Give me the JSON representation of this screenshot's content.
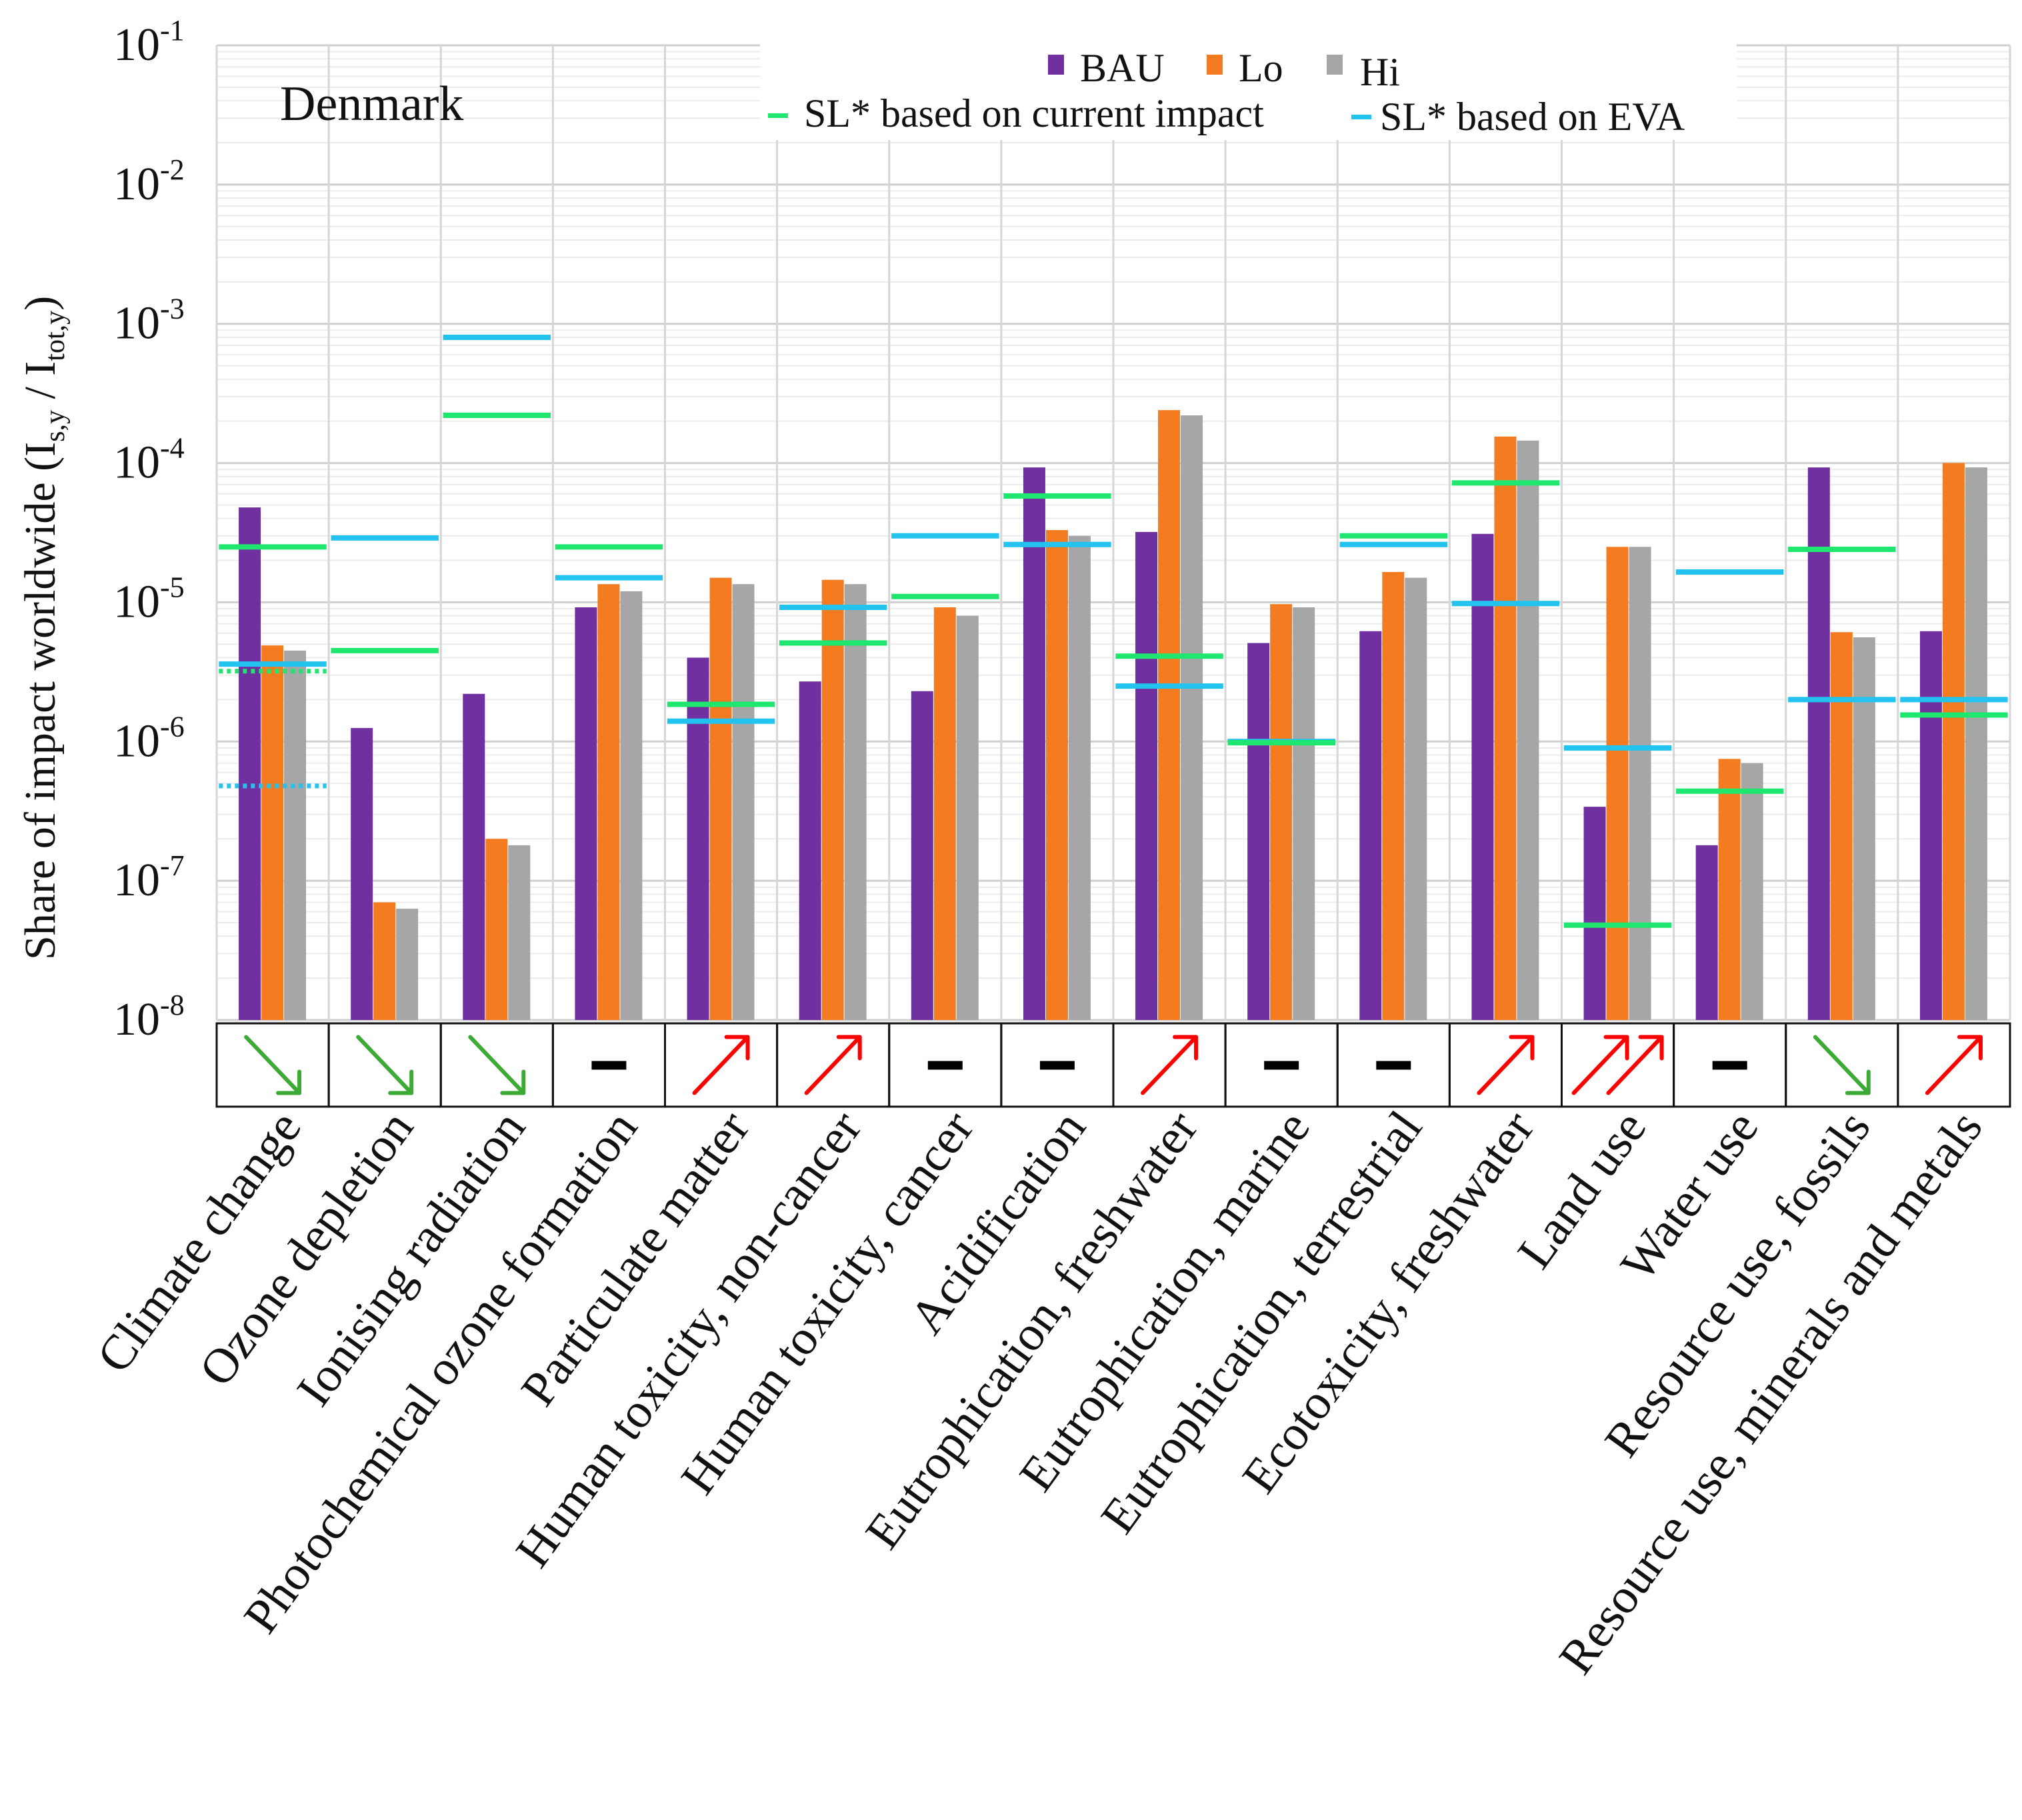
{
  "chart_data": {
    "type": "bar",
    "title": "Denmark",
    "ylabel": {
      "main": "Share of impact worldwide (I",
      "sub1": "s,y",
      "mid": " / I",
      "sub2": "tot,y",
      "end": ")"
    },
    "yscale": "log",
    "ylim": [
      1e-08,
      0.1
    ],
    "yticks": [
      {
        "base": "10",
        "exp": "-1",
        "value": 0.1
      },
      {
        "base": "10",
        "exp": "-2",
        "value": 0.01
      },
      {
        "base": "10",
        "exp": "-3",
        "value": 0.001
      },
      {
        "base": "10",
        "exp": "-4",
        "value": 0.0001
      },
      {
        "base": "10",
        "exp": "-5",
        "value": 1e-05
      },
      {
        "base": "10",
        "exp": "-6",
        "value": 1e-06
      },
      {
        "base": "10",
        "exp": "-7",
        "value": 1e-07
      },
      {
        "base": "10",
        "exp": "-8",
        "value": 1e-08
      }
    ],
    "grid": true,
    "legend_position": "top-right",
    "legend": {
      "bars": [
        {
          "name": "BAU",
          "color": "#7030A0"
        },
        {
          "name": "Lo",
          "color": "#F47B20"
        },
        {
          "name": "Hi",
          "color": "#A6A6A6"
        }
      ],
      "lines": [
        {
          "name": "SL* based on current impact",
          "color": "#1EE66E"
        },
        {
          "name": "SL* based on EVA",
          "color": "#22C3EE"
        }
      ]
    },
    "categories": [
      "Climate change",
      "Ozone depletion",
      "Ionising radiation",
      "Photochemical ozone formation",
      "Particulate matter",
      "Human toxicity, non-cancer",
      "Human toxicity, cancer",
      "Acidification",
      "Eutrophication, freshwater",
      "Eutrophication, marine",
      "Eutrophication, terrestrial",
      "Ecotoxicity, freshwater",
      "Land use",
      "Water use",
      "Resource use, fossils",
      "Resource use, minerals and metals"
    ],
    "series": [
      {
        "name": "BAU",
        "color": "#7030A0",
        "values": [
          4.8e-05,
          1.25e-06,
          2.2e-06,
          9.2e-06,
          4e-06,
          2.7e-06,
          2.3e-06,
          9.3e-05,
          3.2e-05,
          5.1e-06,
          6.2e-06,
          3.1e-05,
          3.4e-07,
          1.8e-07,
          9.3e-05,
          6.2e-06
        ]
      },
      {
        "name": "Lo",
        "color": "#F47B20",
        "values": [
          4.9e-06,
          7e-08,
          2e-07,
          1.35e-05,
          1.5e-05,
          1.45e-05,
          9.2e-06,
          3.3e-05,
          0.00024,
          9.7e-06,
          1.65e-05,
          0.000155,
          2.5e-05,
          7.5e-07,
          6.1e-06,
          0.0001
        ]
      },
      {
        "name": "Hi",
        "color": "#A6A6A6",
        "values": [
          4.5e-06,
          6.3e-08,
          1.8e-07,
          1.2e-05,
          1.35e-05,
          1.35e-05,
          8e-06,
          3e-05,
          0.00022,
          9.2e-06,
          1.5e-05,
          0.000145,
          2.5e-05,
          7e-07,
          5.6e-06,
          9.3e-05
        ]
      }
    ],
    "sl_current_impact": [
      2.5e-05,
      4.5e-06,
      0.00022,
      2.5e-05,
      1.85e-06,
      5.1e-06,
      1.1e-05,
      5.8e-05,
      4.1e-06,
      9.8e-07,
      3e-05,
      7.2e-05,
      4.8e-08,
      4.4e-07,
      2.4e-05,
      1.55e-06
    ],
    "sl_eva": [
      3.6e-06,
      2.9e-05,
      0.0008,
      1.5e-05,
      1.4e-06,
      9.2e-06,
      3e-05,
      2.6e-05,
      2.5e-06,
      1e-06,
      2.6e-05,
      9.8e-06,
      9e-07,
      1.65e-05,
      2e-06,
      2e-06
    ],
    "extra_dotted": [
      {
        "category": "Climate change",
        "series": "SL* based on current impact",
        "value": 3.2e-06
      },
      {
        "category": "Climate change",
        "series": "SL* based on EVA",
        "value": 4.8e-07
      }
    ],
    "trend_indicators": [
      "down",
      "down",
      "down",
      "flat",
      "up",
      "up",
      "flat",
      "flat",
      "up",
      "flat",
      "flat",
      "up",
      "double-up",
      "flat",
      "down",
      "up"
    ],
    "trend_colors": {
      "down": "#3DAA35",
      "up": "#FF0000",
      "double-up": "#FF0000",
      "flat": "#000000"
    }
  }
}
